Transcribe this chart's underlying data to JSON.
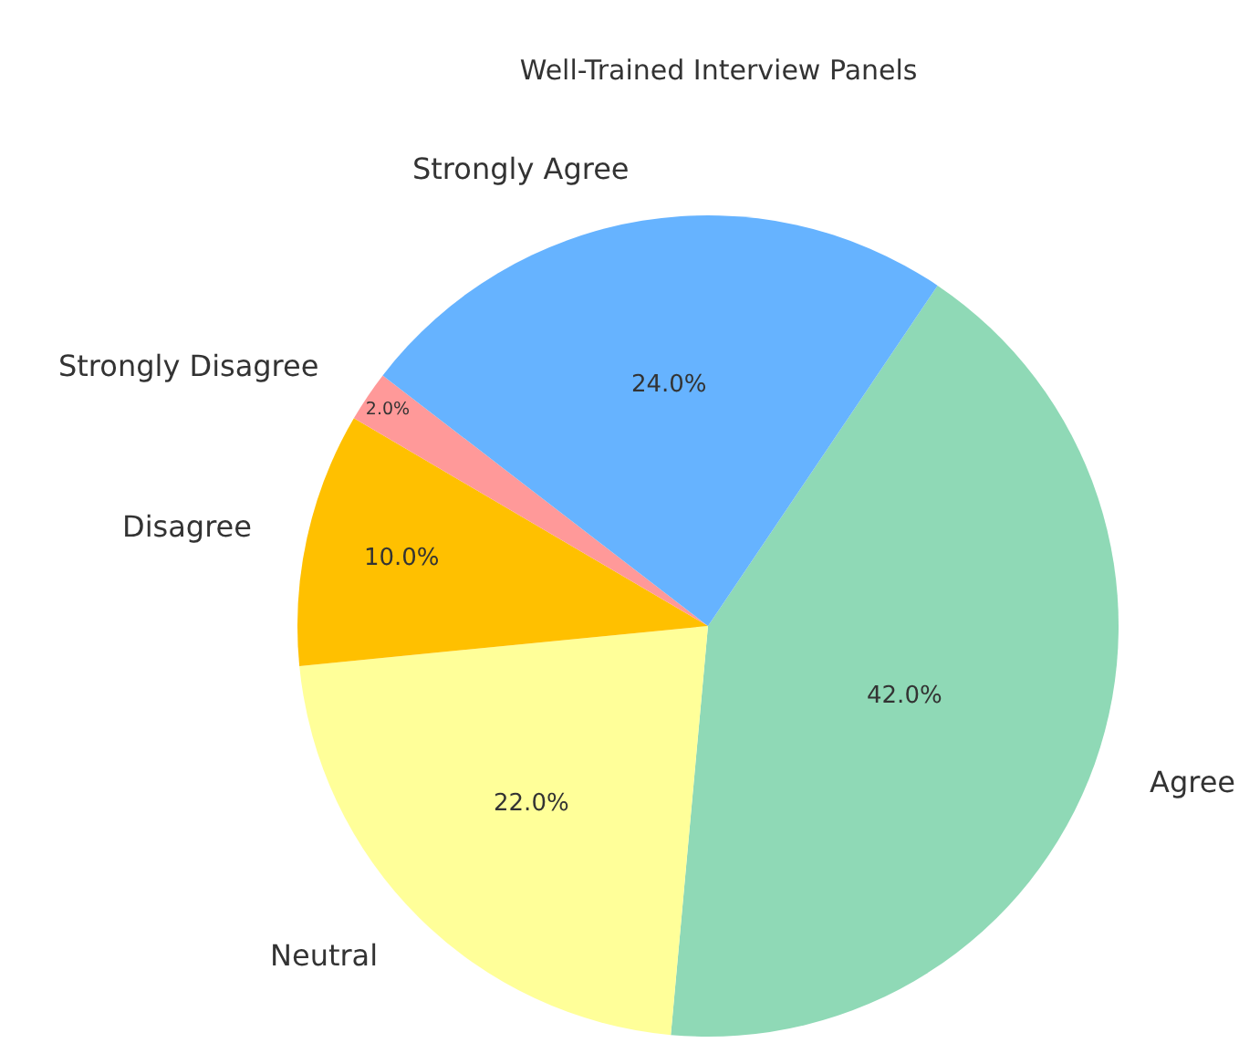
{
  "chart_data": {
    "type": "pie",
    "title": "Well-Trained Interview Panels",
    "categories": [
      "Agree",
      "Neutral",
      "Disagree",
      "Strongly Disagree",
      "Strongly Agree"
    ],
    "values": [
      42,
      22,
      10,
      2,
      24
    ],
    "value_labels": [
      "42.0%",
      "22.0%",
      "10.0%",
      "2.0%",
      "24.0%"
    ],
    "colors": [
      "#8fd9b6",
      "#ffff99",
      "#ffc000",
      "#ff9999",
      "#66b3ff"
    ],
    "legend": false
  }
}
